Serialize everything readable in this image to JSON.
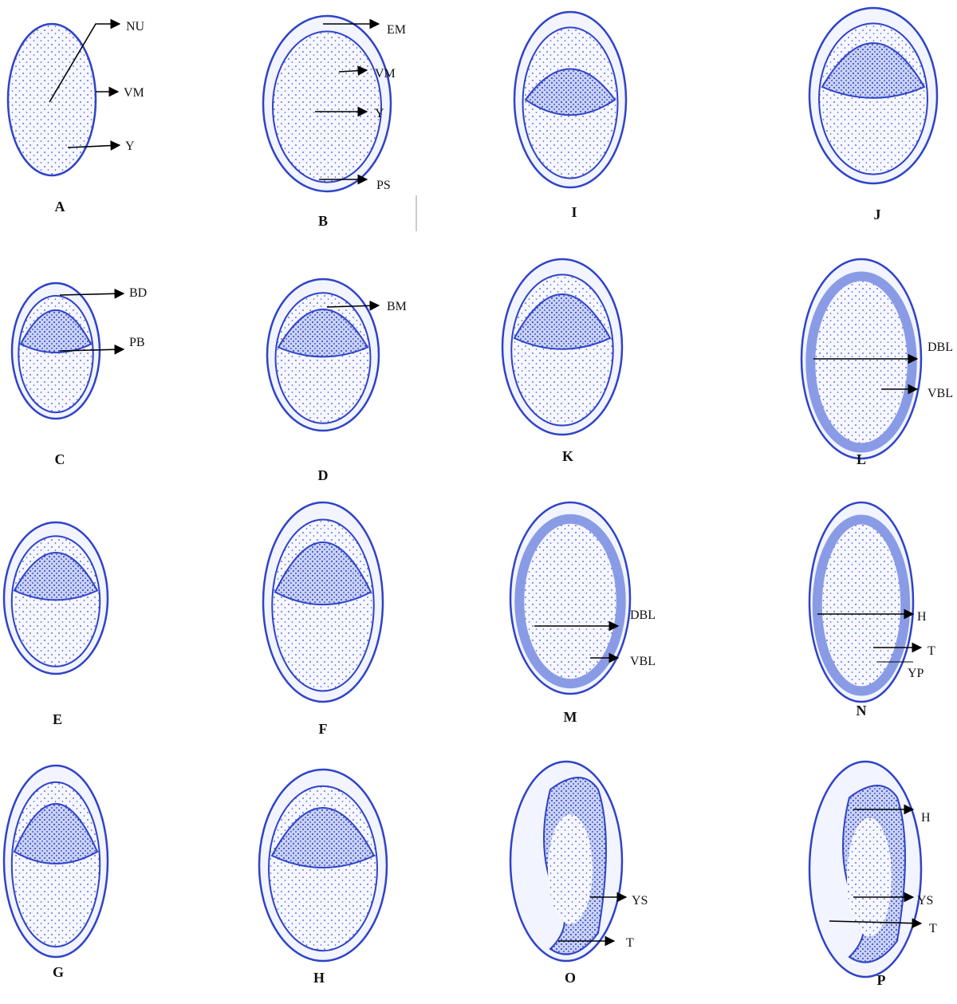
{
  "panels": [
    {
      "label": "A",
      "annotations": [
        "NU",
        "VM",
        "Y"
      ]
    },
    {
      "label": "B",
      "annotations": [
        "EM",
        "VM",
        "Y",
        "PS"
      ]
    },
    {
      "label": "I",
      "annotations": []
    },
    {
      "label": "J",
      "annotations": []
    },
    {
      "label": "C",
      "annotations": [
        "BD",
        "PB"
      ]
    },
    {
      "label": "D",
      "annotations": [
        "BM"
      ]
    },
    {
      "label": "K",
      "annotations": []
    },
    {
      "label": "L",
      "annotations": [
        "DBL",
        "VBL"
      ]
    },
    {
      "label": "E",
      "annotations": []
    },
    {
      "label": "F",
      "annotations": []
    },
    {
      "label": "M",
      "annotations": [
        "DBL",
        "VBL"
      ]
    },
    {
      "label": "N",
      "annotations": [
        "H",
        "T",
        "YP"
      ]
    },
    {
      "label": "G",
      "annotations": []
    },
    {
      "label": "H",
      "annotations": []
    },
    {
      "label": "O",
      "annotations": [
        "YS",
        "T"
      ]
    },
    {
      "label": "P",
      "annotations": [
        "H",
        "YS",
        "T"
      ]
    }
  ]
}
